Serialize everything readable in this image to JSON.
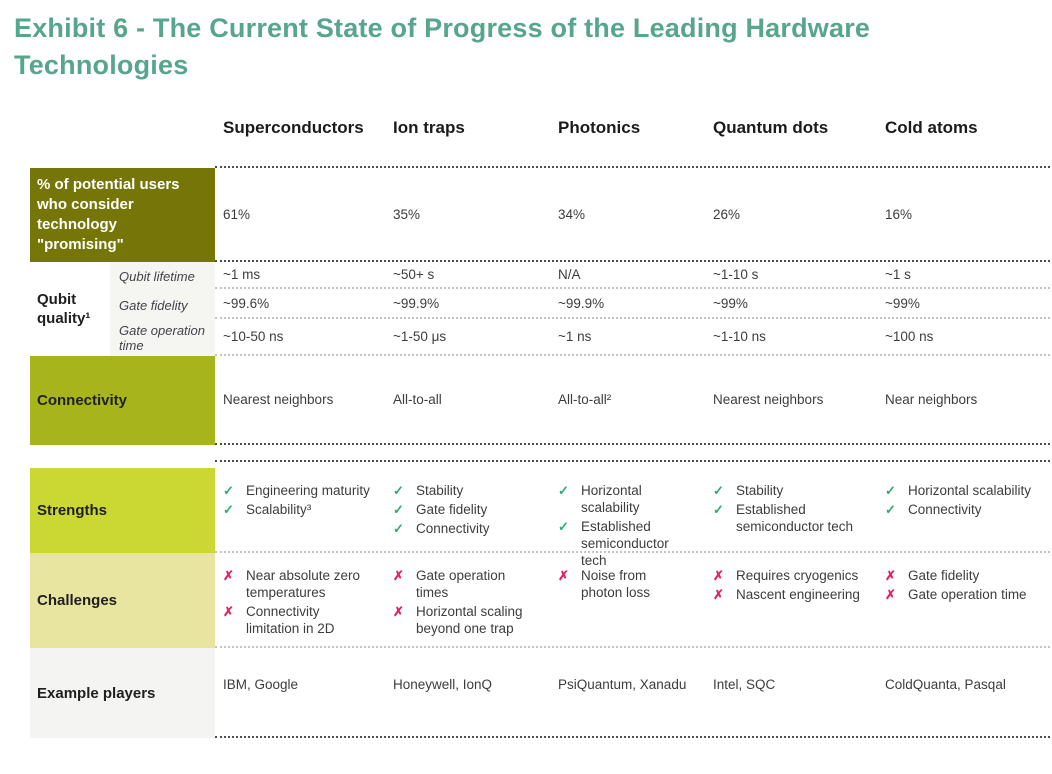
{
  "title": "Exhibit 6 - The Current State of Progress of the Leading Hardware Technologies",
  "icons": {
    "check": "✓",
    "cross": "✗"
  },
  "colors": {
    "title_teal": "#57a68c",
    "promising_row_bg": "#767508",
    "connectivity_row_bg": "#a8b41c",
    "strengths_row_bg": "#cbd834",
    "challenges_row_bg": "#e8e5a0",
    "example_row_bg": "#f4f4f2",
    "sublabel_col_bg": "#f5f5f2",
    "check_green": "#2fab6e",
    "cross_red": "#e0245f"
  },
  "columns": [
    "Superconductors",
    "Ion traps",
    "Photonics",
    "Quantum dots",
    "Cold atoms"
  ],
  "promising": {
    "label": "% of potential users who consider technology \"promising\"",
    "values": [
      "61%",
      "35%",
      "34%",
      "26%",
      "16%"
    ]
  },
  "qubit_quality": {
    "label": "Qubit quality¹",
    "sub_labels": [
      "Qubit lifetime",
      "Gate fidelity",
      "Gate operation time"
    ],
    "qubit_lifetime": [
      "~1 ms",
      "~50+ s",
      "N/A",
      "~1-10 s",
      "~1 s"
    ],
    "gate_fidelity": [
      "~99.6%",
      "~99.9%",
      "~99.9%",
      "~99%",
      "~99%"
    ],
    "gate_operation_time": [
      "~10-50 ns",
      "~1-50 μs",
      "~1 ns",
      "~1-10 ns",
      "~100 ns"
    ]
  },
  "connectivity": {
    "label": "Connectivity",
    "values": [
      "Nearest neighbors",
      "All-to-all",
      "All-to-all²",
      "Nearest neighbors",
      "Near neighbors"
    ]
  },
  "strengths": {
    "label": "Strengths",
    "cells": [
      [
        "Engineering maturity",
        "Scalability³"
      ],
      [
        "Stability",
        "Gate fidelity",
        "Connectivity"
      ],
      [
        "Horizontal scalability",
        "Established semiconductor tech"
      ],
      [
        "Stability",
        "Established semiconductor tech"
      ],
      [
        "Horizontal scalability",
        "Connectivity"
      ]
    ]
  },
  "challenges": {
    "label": "Challenges",
    "cells": [
      [
        "Near absolute zero temperatures",
        "Connectivity limitation in 2D"
      ],
      [
        "Gate operation times",
        "Horizontal scaling beyond one trap"
      ],
      [
        "Noise from photon loss"
      ],
      [
        "Requires cryogenics",
        "Nascent engineering"
      ],
      [
        "Gate fidelity",
        "Gate operation time"
      ]
    ]
  },
  "example_players": {
    "label": "Example players",
    "values": [
      "IBM, Google",
      "Honeywell, IonQ",
      "PsiQuantum, Xanadu",
      "Intel, SQC",
      "ColdQuanta, Pasqal"
    ]
  }
}
